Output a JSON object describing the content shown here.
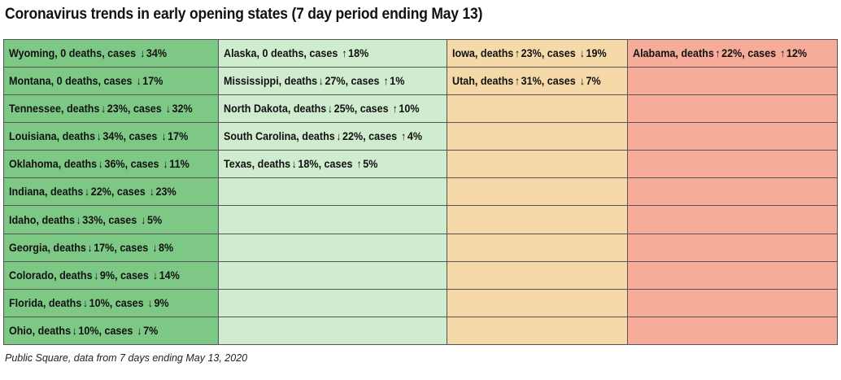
{
  "title": "Coronavirus trends in early opening states (7 day period ending May 13)",
  "caption": "Public Square, data from 7 days ending May 13, 2020",
  "colors": {
    "col0": "#7ec886",
    "col1": "#cfeccf",
    "col2": "#f5d9a8",
    "col3": "#f7ab99"
  },
  "chart_data": {
    "type": "table",
    "title": "Coronavirus trends in early opening states (7 day period ending May 13)",
    "columns": [
      [
        {
          "state": "Wyoming",
          "deaths_text": "0 deaths",
          "cases_dir": "down",
          "cases_pct": "34%"
        },
        {
          "state": "Montana",
          "deaths_text": "0 deaths",
          "cases_dir": "down",
          "cases_pct": "17%"
        },
        {
          "state": "Tennessee",
          "deaths_dir": "down",
          "deaths_pct": "23%",
          "cases_dir": "down",
          "cases_pct": "32%"
        },
        {
          "state": "Louisiana",
          "deaths_dir": "down",
          "deaths_pct": "34%",
          "cases_dir": "down",
          "cases_pct": "17%"
        },
        {
          "state": "Oklahoma",
          "deaths_dir": "down",
          "deaths_pct": "36%",
          "cases_dir": "down",
          "cases_pct": "11%"
        },
        {
          "state": "Indiana",
          "deaths_dir": "down",
          "deaths_pct": "22%",
          "cases_dir": "down",
          "cases_pct": "23%"
        },
        {
          "state": "Idaho",
          "deaths_dir": "down",
          "deaths_pct": "33%",
          "cases_dir": "down",
          "cases_pct": "5%"
        },
        {
          "state": "Georgia",
          "deaths_dir": "down",
          "deaths_pct": "17%",
          "cases_dir": "down",
          "cases_pct": "8%"
        },
        {
          "state": "Colorado",
          "deaths_dir": "down",
          "deaths_pct": "9%",
          "cases_dir": "down",
          "cases_pct": "14%"
        },
        {
          "state": "Florida",
          "deaths_dir": "down",
          "deaths_pct": "10%",
          "cases_dir": "down",
          "cases_pct": "9%"
        },
        {
          "state": "Ohio",
          "deaths_dir": "down",
          "deaths_pct": "10%",
          "cases_dir": "down",
          "cases_pct": "7%"
        }
      ],
      [
        {
          "state": "Alaska",
          "deaths_text": "0 deaths",
          "cases_dir": "up",
          "cases_pct": "18%"
        },
        {
          "state": "Mississippi",
          "deaths_dir": "down",
          "deaths_pct": "27%",
          "cases_dir": "up",
          "cases_pct": "1%"
        },
        {
          "state": "North Dakota",
          "deaths_dir": "down",
          "deaths_pct": "25%",
          "cases_dir": "up",
          "cases_pct": "10%"
        },
        {
          "state": "South Carolina",
          "deaths_dir": "down",
          "deaths_pct": "22%",
          "cases_dir": "up",
          "cases_pct": "4%"
        },
        {
          "state": "Texas",
          "deaths_dir": "down",
          "deaths_pct": "18%",
          "cases_dir": "up",
          "cases_pct": "5%"
        }
      ],
      [
        {
          "state": "Iowa",
          "deaths_dir": "up",
          "deaths_pct": "23%",
          "cases_dir": "down",
          "cases_pct": "19%"
        },
        {
          "state": "Utah",
          "deaths_dir": "up",
          "deaths_pct": "31%",
          "cases_dir": "down",
          "cases_pct": "7%"
        }
      ],
      [
        {
          "state": "Alabama",
          "deaths_dir": "up",
          "deaths_pct": "22%",
          "cases_dir": "up",
          "cases_pct": "12%"
        }
      ]
    ]
  }
}
